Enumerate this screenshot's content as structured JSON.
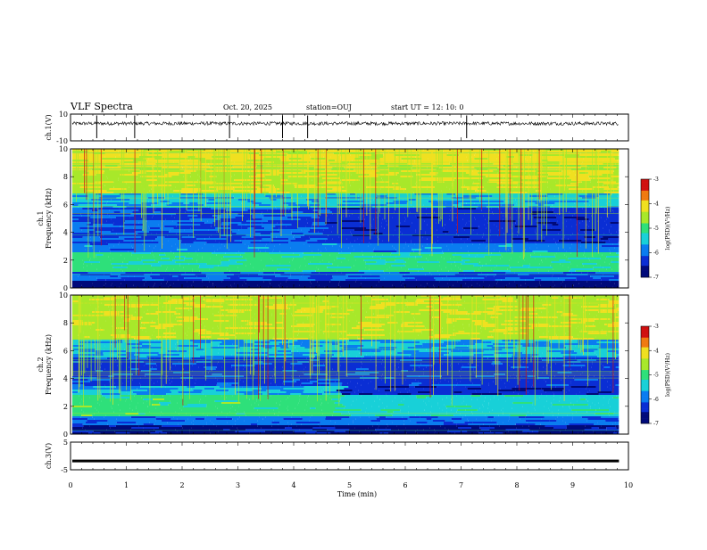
{
  "header": {
    "title": "VLF Spectra",
    "date": "Oct. 20, 2025",
    "station": "station=OUJ",
    "start_ut": "start  UT  =  12: 10: 0"
  },
  "colors": {
    "colormap": [
      "#000a7a",
      "#0a2ed4",
      "#0a7cf0",
      "#18d0d8",
      "#2ee07a",
      "#a8e82a",
      "#f0e020",
      "#f07a10",
      "#d01010"
    ],
    "signal": "#000000"
  },
  "chart_data": [
    {
      "id": "ch1-waveform",
      "type": "line",
      "ylabel": "ch.1(V)",
      "ylim": [
        -10,
        10
      ],
      "yticks": [
        "10",
        "-10"
      ],
      "xlim": [
        0,
        10
      ],
      "baseline": 0,
      "spikes_min": [
        0.47,
        1.15,
        2.85,
        3.8,
        4.25,
        7.1
      ]
    },
    {
      "id": "ch1-spectrogram",
      "type": "heatmap",
      "ylabel": "ch.1\nFrequency (kHz)",
      "xlim": [
        0,
        10
      ],
      "ylim": [
        0,
        10
      ],
      "yticks": [
        "0",
        "2",
        "4",
        "6",
        "8",
        "10"
      ],
      "data_end_min": 9.83,
      "colorbar": {
        "label": "log(PSD)(V²/Hz)",
        "range": [
          -7,
          -3
        ],
        "ticks": [
          "-3",
          "-4",
          "-5",
          "-6",
          "-7"
        ]
      }
    },
    {
      "id": "ch2-spectrogram",
      "type": "heatmap",
      "ylabel": "ch.2\nFrequency (kHz)",
      "xlim": [
        0,
        10
      ],
      "ylim": [
        0,
        10
      ],
      "yticks": [
        "0",
        "2",
        "4",
        "6",
        "8",
        "10"
      ],
      "data_end_min": 9.83,
      "transition_min": 4.65,
      "colorbar": {
        "label": "log(PSD)(V²/Hz)",
        "range": [
          -7,
          -3
        ],
        "ticks": [
          "-3",
          "-4",
          "-5",
          "-6",
          "-7"
        ]
      }
    },
    {
      "id": "ch3-waveform",
      "type": "line",
      "ylabel": "ch.3(V)",
      "ylim": [
        -5,
        5
      ],
      "yticks": [
        "5",
        "-5"
      ],
      "xlim": [
        0,
        10
      ],
      "level": -1.8
    }
  ],
  "xaxis": {
    "label": "Time  (min)",
    "ticks": [
      "0",
      "1",
      "2",
      "3",
      "4",
      "5",
      "6",
      "7",
      "8",
      "9",
      "10"
    ]
  }
}
